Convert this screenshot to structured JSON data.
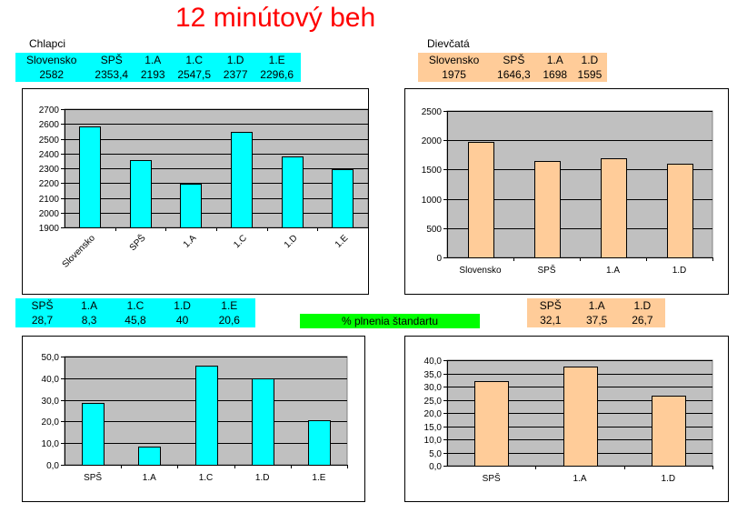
{
  "header": {
    "title": "12 minútový beh"
  },
  "sections": {
    "boys": "Chlapci",
    "girls": "Dievčatá",
    "percent_label": "% plnenia štandartu"
  },
  "colors": {
    "boys": "#00ffff",
    "girls": "#ffcc99",
    "plot_bg": "#c0c0c0",
    "title": "#ff0000",
    "highlight": "#00ff00"
  },
  "tables": {
    "boys_run": {
      "headers": [
        "Slovensko",
        "SPŠ",
        "1.A",
        "1.C",
        "1.D",
        "1.E"
      ],
      "values": [
        "2582",
        "2353,4",
        "2193",
        "2547,5",
        "2377",
        "2296,6"
      ]
    },
    "girls_run": {
      "headers": [
        "Slovensko",
        "SPŠ",
        "1.A",
        "1.D"
      ],
      "values": [
        "1975",
        "1646,3",
        "1698",
        "1595"
      ]
    },
    "boys_pct": {
      "headers": [
        "SPŠ",
        "1.A",
        "1.C",
        "1.D",
        "1.E"
      ],
      "values": [
        "28,7",
        "8,3",
        "45,8",
        "40",
        "20,6"
      ]
    },
    "girls_pct": {
      "headers": [
        "SPŠ",
        "1.A",
        "1.D"
      ],
      "values": [
        "32,1",
        "37,5",
        "26,7"
      ]
    }
  },
  "chart_data": [
    {
      "type": "bar",
      "categories": [
        "Slovensko",
        "SPŠ",
        "1.A",
        "1.C",
        "1.D",
        "1.E"
      ],
      "values": [
        2582,
        2353.4,
        2193,
        2547.5,
        2377,
        2296.6
      ],
      "ylim": [
        1900,
        2700
      ],
      "yticks": [
        1900,
        2000,
        2100,
        2200,
        2300,
        2400,
        2500,
        2600,
        2700
      ],
      "ytick_labels": [
        "1900",
        "2000",
        "2100",
        "2200",
        "2300",
        "2400",
        "2500",
        "2600",
        "2700"
      ],
      "grid": true,
      "color": "#00ffff",
      "rotated_x_labels": true
    },
    {
      "type": "bar",
      "categories": [
        "Slovensko",
        "SPŠ",
        "1.A",
        "1.D"
      ],
      "values": [
        1975,
        1646.3,
        1698,
        1595
      ],
      "ylim": [
        0,
        2500
      ],
      "yticks": [
        0,
        500,
        1000,
        1500,
        2000,
        2500
      ],
      "ytick_labels": [
        "0",
        "500",
        "1000",
        "1500",
        "2000",
        "2500"
      ],
      "grid": true,
      "color": "#ffcc99",
      "rotated_x_labels": false
    },
    {
      "type": "bar",
      "categories": [
        "SPŠ",
        "1.A",
        "1.C",
        "1.D",
        "1.E"
      ],
      "values": [
        28.7,
        8.3,
        45.8,
        40,
        20.6
      ],
      "ylim": [
        0,
        50
      ],
      "yticks": [
        0,
        10,
        20,
        30,
        40,
        50
      ],
      "ytick_labels": [
        "0,0",
        "10,0",
        "20,0",
        "30,0",
        "40,0",
        "50,0"
      ],
      "grid": true,
      "color": "#00ffff",
      "rotated_x_labels": false
    },
    {
      "type": "bar",
      "categories": [
        "SPŠ",
        "1.A",
        "1.D"
      ],
      "values": [
        32.1,
        37.5,
        26.7
      ],
      "ylim": [
        0,
        40
      ],
      "yticks": [
        0,
        5,
        10,
        15,
        20,
        25,
        30,
        35,
        40
      ],
      "ytick_labels": [
        "0,0",
        "5,0",
        "10,0",
        "15,0",
        "20,0",
        "25,0",
        "30,0",
        "35,0",
        "40,0"
      ],
      "grid": true,
      "color": "#ffcc99",
      "rotated_x_labels": false
    }
  ]
}
